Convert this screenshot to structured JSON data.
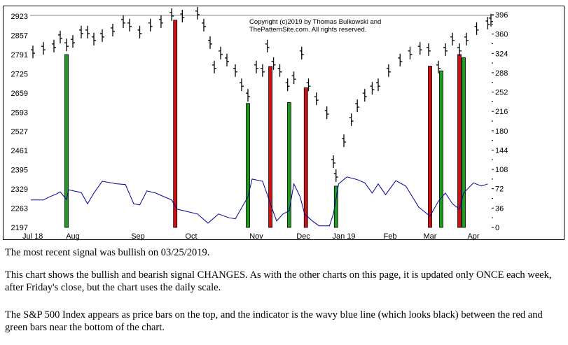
{
  "chart_data": {
    "type": "price-bars-with-indicator",
    "copyright": [
      "Copyright (c)2019 by Thomas Bulkowski and",
      "ThePatternSite.com. All rights reserved."
    ],
    "x_tick_labels": [
      {
        "label": "Jul 18",
        "date": "2018-07-12"
      },
      {
        "label": "Aug",
        "date": "2018-08-01"
      },
      {
        "label": "Sep",
        "date": "2018-09-01"
      },
      {
        "label": "Oct",
        "date": "2018-10-01"
      },
      {
        "label": "Nov",
        "date": "2018-11-01"
      },
      {
        "label": "Dec",
        "date": "2018-12-01"
      },
      {
        "label": "Jan 19",
        "date": "2019-01-01"
      },
      {
        "label": "Feb",
        "date": "2019-02-01"
      },
      {
        "label": "Mar",
        "date": "2019-03-01"
      },
      {
        "label": "Apr",
        "date": "2019-04-01"
      }
    ],
    "left_axis": {
      "ticks": [
        2923,
        2857,
        2791,
        2725,
        2659,
        2593,
        2527,
        2461,
        2395,
        2329,
        2263,
        2197
      ],
      "range": [
        2197,
        2923
      ]
    },
    "right_axis": {
      "ticks": [
        396,
        360,
        324,
        288,
        252,
        216,
        180,
        144,
        108,
        72,
        36,
        0
      ],
      "range": [
        0,
        396
      ]
    },
    "price_series": [
      [
        "2018-07-13",
        2800
      ],
      [
        "2018-07-18",
        2812
      ],
      [
        "2018-07-23",
        2820
      ],
      [
        "2018-07-26",
        2851
      ],
      [
        "2018-07-29",
        2824
      ],
      [
        "2018-08-01",
        2836
      ],
      [
        "2018-08-05",
        2868
      ],
      [
        "2018-08-08",
        2868
      ],
      [
        "2018-08-11",
        2844
      ],
      [
        "2018-08-15",
        2856
      ],
      [
        "2018-08-20",
        2875
      ],
      [
        "2018-08-25",
        2904
      ],
      [
        "2018-08-28",
        2892
      ],
      [
        "2018-09-02",
        2868
      ],
      [
        "2018-09-08",
        2892
      ],
      [
        "2018-09-14",
        2904
      ],
      [
        "2018-09-20",
        2928
      ],
      [
        "2018-09-26",
        2923
      ],
      [
        "2018-10-04",
        2933
      ],
      [
        "2018-10-07",
        2892
      ],
      [
        "2018-10-10",
        2832
      ],
      [
        "2018-10-12",
        2748
      ],
      [
        "2018-10-15",
        2796
      ],
      [
        "2018-10-18",
        2772
      ],
      [
        "2018-10-22",
        2736
      ],
      [
        "2018-10-25",
        2687
      ],
      [
        "2018-10-28",
        2651
      ],
      [
        "2018-11-01",
        2748
      ],
      [
        "2018-11-05",
        2736
      ],
      [
        "2018-11-08",
        2820
      ],
      [
        "2018-11-12",
        2760
      ],
      [
        "2018-11-16",
        2736
      ],
      [
        "2018-11-21",
        2687
      ],
      [
        "2018-11-25",
        2711
      ],
      [
        "2018-11-30",
        2796
      ],
      [
        "2018-12-05",
        2687
      ],
      [
        "2018-12-11",
        2639
      ],
      [
        "2018-12-19",
        2591
      ],
      [
        "2018-12-24",
        2423
      ],
      [
        "2018-12-26",
        2375
      ],
      [
        "2019-01-01",
        2495
      ],
      [
        "2019-01-06",
        2567
      ],
      [
        "2019-01-10",
        2615
      ],
      [
        "2019-01-15",
        2651
      ],
      [
        "2019-01-20",
        2675
      ],
      [
        "2019-01-24",
        2687
      ],
      [
        "2019-01-31",
        2736
      ],
      [
        "2019-02-08",
        2772
      ],
      [
        "2019-02-15",
        2796
      ],
      [
        "2019-02-22",
        2812
      ],
      [
        "2019-02-28",
        2808
      ],
      [
        "2019-03-07",
        2748
      ],
      [
        "2019-03-12",
        2808
      ],
      [
        "2019-03-17",
        2844
      ],
      [
        "2019-03-22",
        2808
      ],
      [
        "2019-03-27",
        2844
      ],
      [
        "2019-04-03",
        2880
      ],
      [
        "2019-04-10",
        2899
      ],
      [
        "2019-04-12",
        2909
      ]
    ],
    "indicator_series": {
      "color": "#0000a0",
      "points": [
        [
          "2018-07-12",
          51
        ],
        [
          "2018-07-18",
          51
        ],
        [
          "2018-07-21",
          57
        ],
        [
          "2018-07-24",
          62
        ],
        [
          "2018-07-26",
          66
        ],
        [
          "2018-07-29",
          52
        ],
        [
          "2018-07-30",
          70
        ],
        [
          "2018-08-05",
          65
        ],
        [
          "2018-08-08",
          44
        ],
        [
          "2018-08-11",
          64
        ],
        [
          "2018-08-15",
          86
        ],
        [
          "2018-08-22",
          81
        ],
        [
          "2018-08-26",
          80
        ],
        [
          "2018-08-30",
          44
        ],
        [
          "2018-09-02",
          42
        ],
        [
          "2018-09-06",
          68
        ],
        [
          "2018-09-11",
          64
        ],
        [
          "2018-09-20",
          51
        ],
        [
          "2018-09-23",
          34
        ],
        [
          "2018-09-27",
          31
        ],
        [
          "2018-10-04",
          25
        ],
        [
          "2018-10-09",
          8
        ],
        [
          "2018-10-14",
          25
        ],
        [
          "2018-10-19",
          18
        ],
        [
          "2018-10-22",
          16
        ],
        [
          "2018-10-28",
          57
        ],
        [
          "2018-10-30",
          90
        ],
        [
          "2018-11-05",
          86
        ],
        [
          "2018-11-10",
          44
        ],
        [
          "2018-11-14",
          12
        ],
        [
          "2018-11-18",
          25
        ],
        [
          "2018-11-22",
          31
        ],
        [
          "2018-11-25",
          81
        ],
        [
          "2018-11-29",
          57
        ],
        [
          "2018-12-02",
          25
        ],
        [
          "2018-12-08",
          12
        ],
        [
          "2018-12-13",
          3
        ],
        [
          "2018-12-21",
          3
        ],
        [
          "2018-12-24",
          25
        ],
        [
          "2018-12-28",
          81
        ],
        [
          "2019-01-03",
          94
        ],
        [
          "2019-01-10",
          89
        ],
        [
          "2019-01-15",
          83
        ],
        [
          "2019-01-20",
          64
        ],
        [
          "2019-01-24",
          81
        ],
        [
          "2019-01-29",
          61
        ],
        [
          "2019-02-05",
          87
        ],
        [
          "2019-02-12",
          77
        ],
        [
          "2019-02-21",
          38
        ],
        [
          "2019-03-01",
          21
        ],
        [
          "2019-03-07",
          49
        ],
        [
          "2019-03-12",
          64
        ],
        [
          "2019-03-17",
          44
        ],
        [
          "2019-03-22",
          34
        ],
        [
          "2019-03-25",
          64
        ],
        [
          "2019-04-01",
          83
        ],
        [
          "2019-04-06",
          77
        ],
        [
          "2019-04-10",
          81
        ]
      ]
    },
    "signals": [
      {
        "date": "2018-07-29",
        "type": "bullish",
        "top": 2791
      },
      {
        "date": "2018-09-22",
        "type": "bearish",
        "top": 2909
      },
      {
        "date": "2018-10-28",
        "type": "bullish",
        "top": 2623
      },
      {
        "date": "2018-11-10",
        "type": "bearish",
        "top": 2750
      },
      {
        "date": "2018-11-22",
        "type": "bullish",
        "top": 2626
      },
      {
        "date": "2018-12-03",
        "type": "bearish",
        "top": 2677
      },
      {
        "date": "2018-12-26",
        "type": "bullish",
        "top": 2339
      },
      {
        "date": "2019-03-01",
        "type": "bearish",
        "top": 2751
      },
      {
        "date": "2019-03-09",
        "type": "bullish",
        "top": 2735
      },
      {
        "date": "2019-03-22",
        "type": "bearish",
        "top": 2791
      },
      {
        "date": "2019-03-25",
        "type": "bullish",
        "top": 2780
      }
    ],
    "colors": {
      "bullish": "#1e9a1e",
      "bearish": "#c81414",
      "price": "#000000"
    },
    "grid": false
  },
  "text": {
    "recent_signal": "The most recent signal was bullish on 03/25/2019.",
    "para_changes": "This chart shows the bullish and bearish signal CHANGES. As with the other charts on this page, it is updated only ONCE each week, after Friday's close, but the chart uses the daily scale.",
    "para_index": "The S&P 500 Index appears as price bars on the top, and the indicator is the wavy blue line (which looks black) between the red and green bars near the bottom of the chart."
  }
}
